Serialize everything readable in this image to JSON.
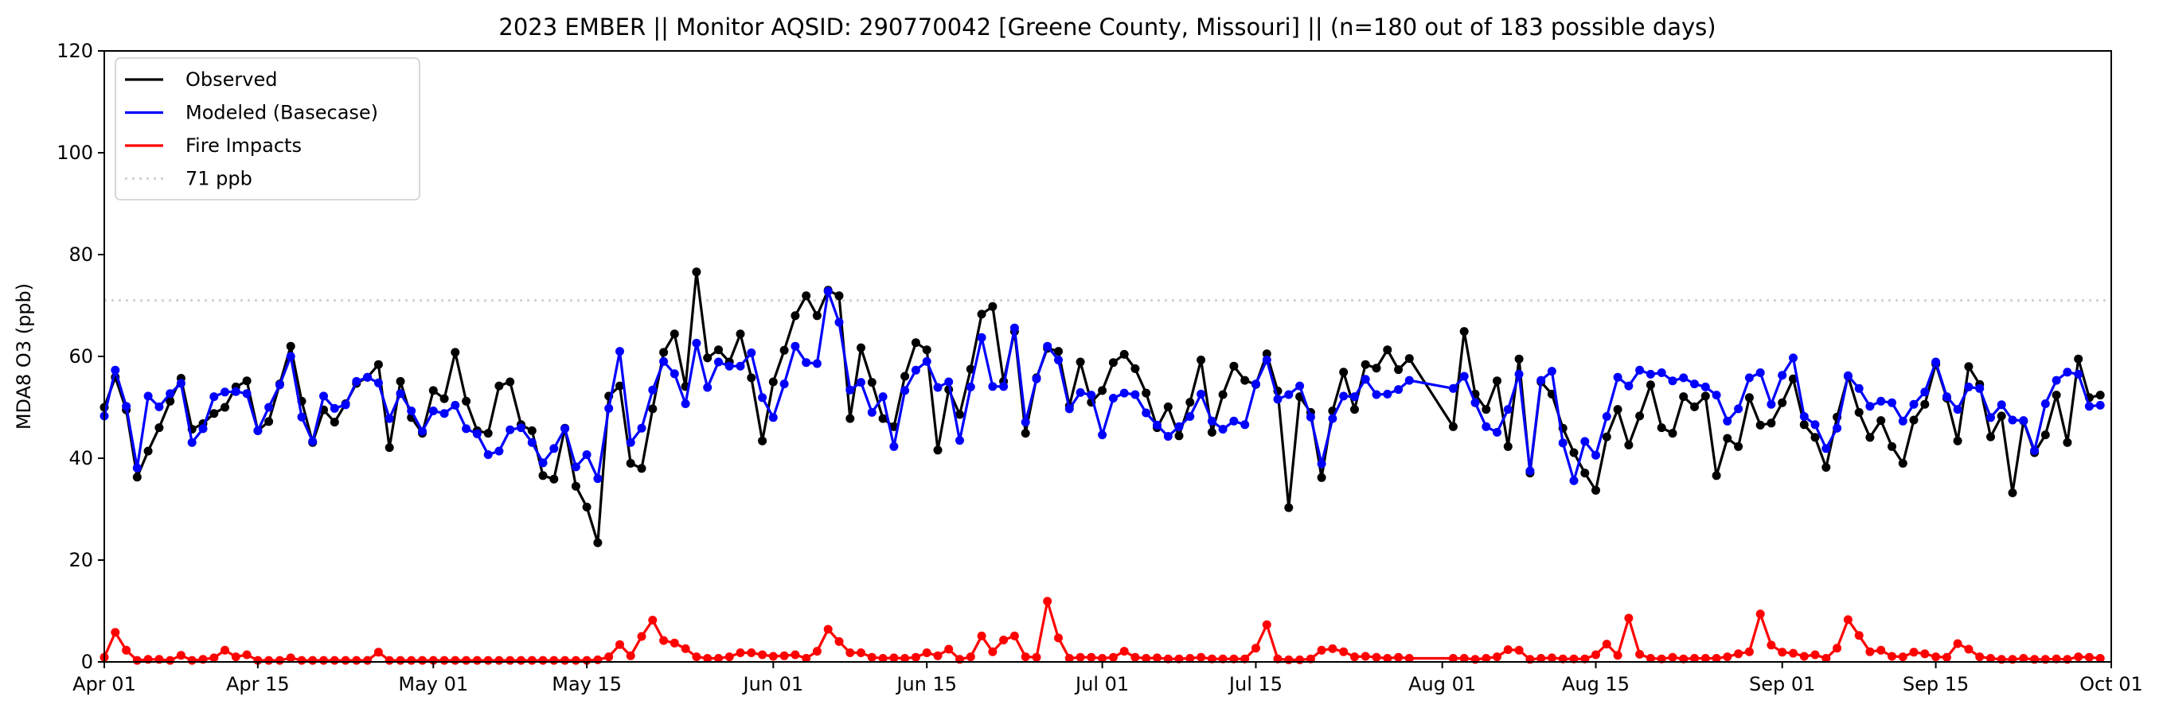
{
  "chart_data": {
    "type": "line",
    "title": "2023 EMBER || Monitor AQSID: 290770042 [Greene County, Missouri] || (n=180 out of 183 possible days)",
    "xlabel": "",
    "ylabel": "MDA8 O3 (ppb)",
    "ylim": [
      0,
      120
    ],
    "yticks": [
      0,
      20,
      40,
      60,
      80,
      100,
      120
    ],
    "x_start_date": "2023-04-01",
    "x_step": "1 day",
    "xlim_days": [
      0,
      183
    ],
    "xticks": [
      {
        "day": 0,
        "label": "Apr 01"
      },
      {
        "day": 14,
        "label": "Apr 15"
      },
      {
        "day": 30,
        "label": "May 01"
      },
      {
        "day": 44,
        "label": "May 15"
      },
      {
        "day": 61,
        "label": "Jun 01"
      },
      {
        "day": 75,
        "label": "Jun 15"
      },
      {
        "day": 91,
        "label": "Jul 01"
      },
      {
        "day": 105,
        "label": "Jul 15"
      },
      {
        "day": 122,
        "label": "Aug 01"
      },
      {
        "day": 136,
        "label": "Aug 15"
      },
      {
        "day": 153,
        "label": "Sep 01"
      },
      {
        "day": 167,
        "label": "Sep 15"
      },
      {
        "day": 183,
        "label": "Oct 01"
      }
    ],
    "grid": false,
    "legend_position": "upper-left",
    "series": [
      {
        "name": "Observed",
        "color": "#000000",
        "values": [
          50,
          55.9,
          49.5,
          36.3,
          41.4,
          46,
          51.2,
          55.7,
          45.7,
          46.8,
          48.8,
          50,
          54,
          55.2,
          45.4,
          47.2,
          54.6,
          62,
          51.2,
          43.1,
          49.5,
          47.1,
          50.7,
          54.7,
          55.9,
          58.4,
          42.1,
          55.1,
          48,
          44.9,
          53.3,
          51.7,
          60.8,
          51.2,
          45.4,
          44.9,
          54.2,
          55,
          46.6,
          45.4,
          36.6,
          35.9,
          45.9,
          34.5,
          30.4,
          23.4,
          52.2,
          54.2,
          39,
          38,
          49.7,
          60.8,
          64.4,
          54.1,
          76.6,
          59.7,
          61.3,
          58.9,
          64.4,
          55.8,
          43.4,
          55,
          61.2,
          68,
          71.9,
          68,
          73,
          71.9,
          47.8,
          61.7,
          54.9,
          47.8,
          46.2,
          56.1,
          62.7,
          61.3,
          41.6,
          53.5,
          48.6,
          57.5,
          68.3,
          69.8,
          55.1,
          64.9,
          44.9,
          55.8,
          61.6,
          61,
          50.3,
          58.9,
          51,
          53.3,
          58.8,
          60.4,
          57.6,
          52.8,
          46,
          50.1,
          44.4,
          51,
          59.3,
          45.1,
          52.5,
          58.1,
          55.3,
          54.5,
          60.5,
          53.2,
          30.3,
          52.1,
          49,
          36.2,
          49.3,
          56.9,
          49.6,
          58.4,
          57.7,
          61.3,
          57.4,
          59.6,
          null,
          null,
          null,
          46.2,
          64.9,
          52.6,
          49.6,
          55.2,
          42.3,
          59.5,
          37.1,
          55,
          52.6,
          45.9,
          41.1,
          37.1,
          33.7,
          44.2,
          49.6,
          42.6,
          48.3,
          54.4,
          46,
          44.9,
          52.1,
          50.1,
          52.2,
          36.6,
          43.9,
          42.3,
          51.9,
          46.5,
          46.9,
          50.9,
          55.6,
          46.6,
          44.1,
          38.2,
          48.1,
          56.1,
          49,
          44.1,
          47.4,
          42.3,
          39,
          47.5,
          50.6,
          58.5,
          51.8,
          43.4,
          58,
          54.5,
          44.2,
          48.3,
          33.2,
          47.3,
          41.1,
          44.6,
          52.4,
          43.1,
          59.5,
          51.9,
          52.4
        ]
      },
      {
        "name": "Modeled (Basecase)",
        "color": "#0000ff",
        "values": [
          48.3,
          57.3,
          50.2,
          38.1,
          52.2,
          50.1,
          52.7,
          54.7,
          43.1,
          45.8,
          52.1,
          53,
          53.1,
          52.7,
          45.4,
          50,
          54.4,
          60,
          48.1,
          43.3,
          52.2,
          49.8,
          50.5,
          55.1,
          55.9,
          54.8,
          47.8,
          52.7,
          49.3,
          45.3,
          49.3,
          48.8,
          50.4,
          45.8,
          44.8,
          40.7,
          41.4,
          45.6,
          46,
          43.1,
          39.1,
          41.9,
          45.8,
          38.3,
          40.7,
          36,
          49.8,
          61,
          43.1,
          45.9,
          53.4,
          59,
          56.6,
          50.7,
          62.6,
          53.9,
          58.9,
          58.1,
          58.1,
          60.7,
          51.9,
          48,
          54.6,
          62,
          58.8,
          58.6,
          72.8,
          66.7,
          53.4,
          54.9,
          49,
          52.1,
          42.3,
          53.3,
          57.3,
          59,
          53.9,
          55,
          43.5,
          54,
          63.7,
          54.1,
          54.1,
          65.6,
          47.1,
          55.6,
          62,
          59.3,
          49.7,
          52.9,
          52.4,
          44.6,
          51.8,
          52.8,
          52.5,
          48.9,
          46.5,
          44.3,
          46.2,
          48.2,
          52.6,
          47.3,
          45.7,
          47.3,
          46.6,
          54.6,
          59.3,
          51.6,
          52.5,
          54.2,
          48.1,
          38.9,
          47.8,
          52.2,
          52.1,
          55.5,
          52.5,
          52.6,
          53.5,
          55.3,
          null,
          null,
          null,
          53.7,
          56.1,
          50.9,
          46.2,
          45.1,
          49.6,
          56.5,
          37.5,
          55.3,
          57.1,
          43,
          35.6,
          43.3,
          40.6,
          48.2,
          55.9,
          54.2,
          57.3,
          56.5,
          56.8,
          55.2,
          55.8,
          54.6,
          54,
          52.4,
          47.3,
          49.7,
          55.8,
          56.8,
          50.6,
          56.3,
          59.7,
          48.2,
          46.6,
          41.9,
          45.9,
          56.2,
          53.7,
          50.2,
          51.2,
          50.9,
          47.3,
          50.6,
          53,
          58.9,
          52.1,
          49.6,
          54,
          53.7,
          48,
          50.5,
          47.5,
          47.4,
          41.5,
          50.7,
          55.3,
          56.9,
          56.5,
          50.2,
          50.4
        ]
      },
      {
        "name": "Fire Impacts",
        "color": "#ff0000",
        "values": [
          0.9,
          5.8,
          2.3,
          0.3,
          0.5,
          0.5,
          0.3,
          1.3,
          0.3,
          0.5,
          0.8,
          2.3,
          1,
          1.4,
          0.3,
          0.3,
          0.3,
          0.8,
          0.3,
          0.3,
          0.3,
          0.3,
          0.3,
          0.3,
          0.3,
          1.9,
          0.3,
          0.3,
          0.3,
          0.3,
          0.3,
          0.3,
          0.3,
          0.3,
          0.3,
          0.3,
          0.3,
          0.3,
          0.3,
          0.3,
          0.3,
          0.3,
          0.3,
          0.3,
          0.3,
          0.4,
          1,
          3.4,
          1.2,
          5,
          8.2,
          4.2,
          3.7,
          2.6,
          1,
          0.7,
          0.7,
          1,
          1.8,
          1.8,
          1.4,
          1.1,
          1.2,
          1.4,
          0.7,
          2.1,
          6.4,
          4,
          1.8,
          1.8,
          0.9,
          0.7,
          0.8,
          0.7,
          0.9,
          1.8,
          1.2,
          2.5,
          0.5,
          1,
          5.1,
          2,
          4.3,
          5.1,
          1,
          0.9,
          11.9,
          4.7,
          0.7,
          0.9,
          0.9,
          0.7,
          0.9,
          2.1,
          0.9,
          0.7,
          0.8,
          0.6,
          0.6,
          0.7,
          0.9,
          0.6,
          0.6,
          0.6,
          0.6,
          2.7,
          7.3,
          0.6,
          0.4,
          0.4,
          0.6,
          2.3,
          2.6,
          2,
          1,
          1.1,
          0.9,
          0.7,
          0.9,
          0.7,
          null,
          null,
          null,
          0.7,
          0.7,
          0.5,
          0.7,
          1,
          2.4,
          2.3,
          0.5,
          0.7,
          0.8,
          0.6,
          0.6,
          0.6,
          1.4,
          3.5,
          1.3,
          8.6,
          1.5,
          0.7,
          0.6,
          0.9,
          0.6,
          0.7,
          0.7,
          0.7,
          1,
          1.6,
          2,
          9.4,
          3.3,
          1.9,
          1.7,
          1.1,
          1.4,
          0.7,
          2.7,
          8.3,
          5.2,
          2,
          2.3,
          1.1,
          1,
          1.9,
          1.6,
          1,
          0.9,
          3.6,
          2.5,
          1,
          0.7,
          0.5,
          0.5,
          0.7,
          0.5,
          0.5,
          0.6,
          0.5,
          1,
          0.9,
          0.7
        ]
      }
    ],
    "reference_line": {
      "label": "71 ppb",
      "value": 71,
      "color": "#d3d3d3",
      "style": "dotted"
    }
  }
}
